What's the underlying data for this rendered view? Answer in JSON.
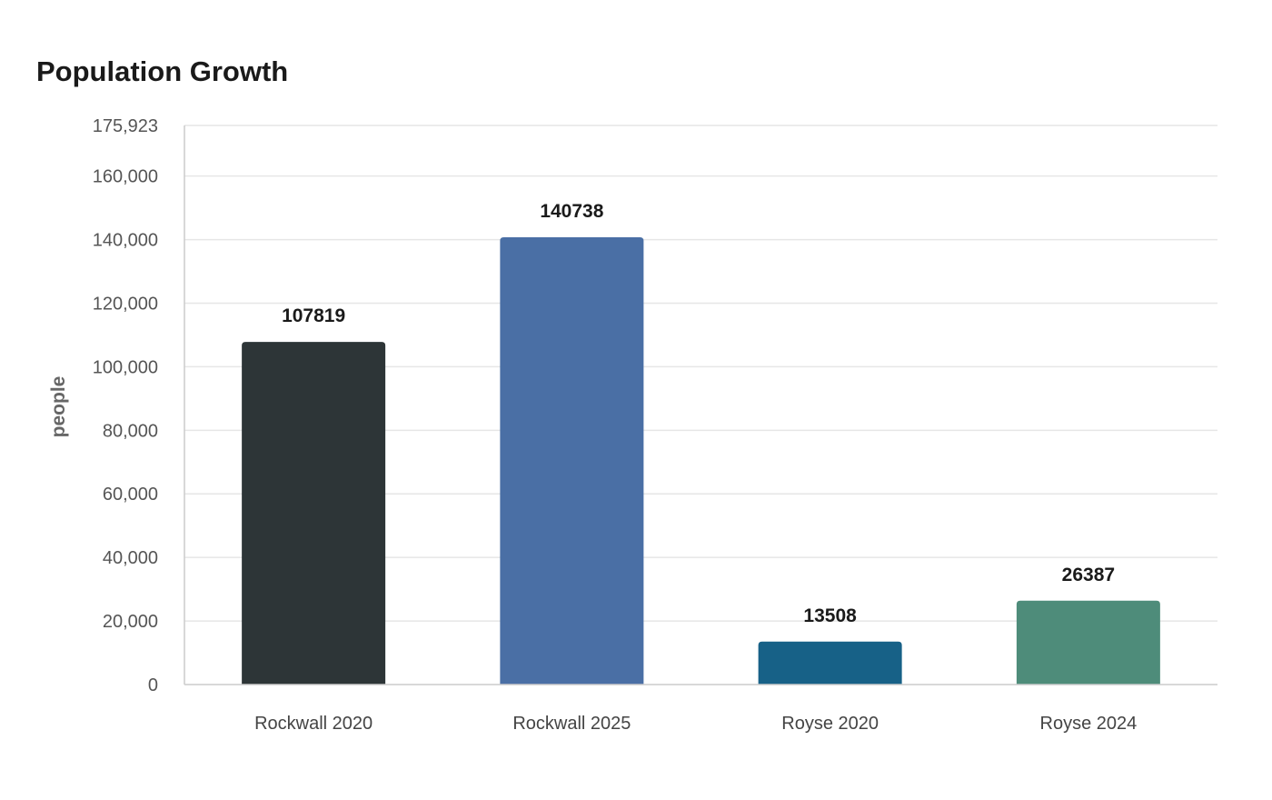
{
  "chart_data": {
    "type": "bar",
    "title": "Population Growth",
    "xlabel": "",
    "ylabel": "people",
    "categories": [
      "Rockwall 2020",
      "Rockwall 2025",
      "Royse 2020",
      "Royse 2024"
    ],
    "values": [
      107819,
      140738,
      13508,
      26387
    ],
    "value_labels": [
      "107819",
      "140738",
      "13508",
      "26387"
    ],
    "colors": [
      "#2d3537",
      "#4a6fa5",
      "#176187",
      "#4e8c7a"
    ],
    "ylim": [
      0,
      175923
    ],
    "yticks": [
      0,
      20000,
      40000,
      60000,
      80000,
      100000,
      120000,
      140000,
      160000,
      175923
    ],
    "ytick_labels": [
      "0",
      "20,000",
      "40,000",
      "60,000",
      "80,000",
      "100,000",
      "120,000",
      "140,000",
      "160,000",
      "175,923"
    ],
    "grid": true,
    "legend": "none"
  }
}
